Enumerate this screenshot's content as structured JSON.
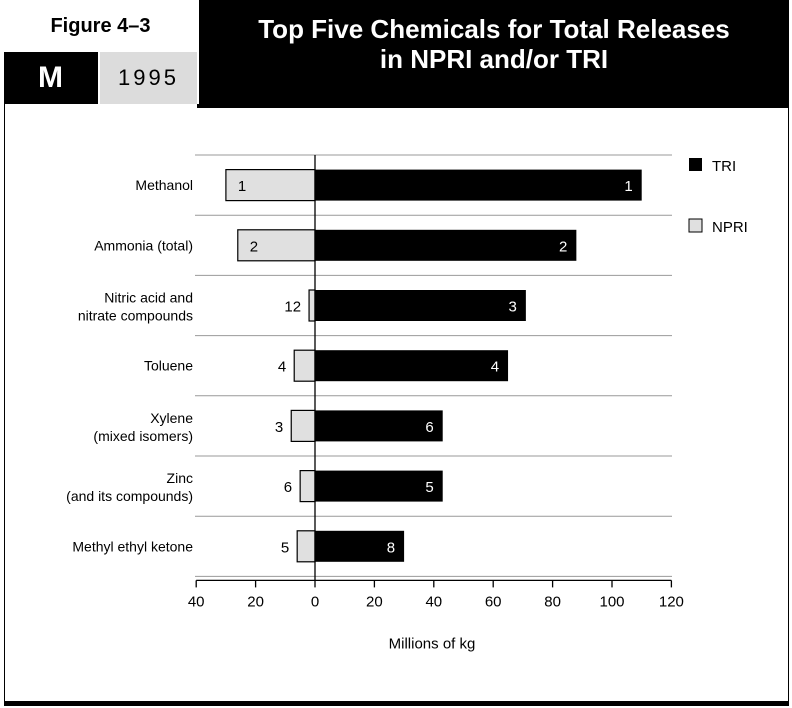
{
  "header": {
    "figure_label": "Figure 4–3",
    "code_letter": "M",
    "year": "1995",
    "title_line1": "Top Five Chemicals for Total Releases",
    "title_line2": "in NPRI and/or TRI"
  },
  "colors": {
    "tri": "#000000",
    "npri": "#e0e0e0",
    "grid": "#999999"
  },
  "chart_data": {
    "type": "bar",
    "orientation": "horizontal",
    "title": "Top Five Chemicals for Total Releases in NPRI and/or TRI",
    "xlabel": "Millions of kg",
    "xlim": [
      -40,
      120
    ],
    "x_ticks": [
      -40,
      -20,
      0,
      20,
      40,
      60,
      80,
      100,
      120
    ],
    "x_tick_labels": [
      "40",
      "20",
      "0",
      "20",
      "40",
      "60",
      "80",
      "100",
      "120"
    ],
    "categories": [
      [
        "Methanol"
      ],
      [
        "Ammonia (total)"
      ],
      [
        "Nitric acid and",
        "nitrate compounds"
      ],
      [
        "Toluene"
      ],
      [
        "Xylene",
        "(mixed isomers)"
      ],
      [
        "Zinc",
        "(and its compounds)"
      ],
      [
        "Methyl ethyl ketone"
      ]
    ],
    "series": [
      {
        "name": "TRI",
        "values": [
          110,
          88,
          71,
          65,
          43,
          43,
          30
        ],
        "ranks": [
          "1",
          "2",
          "3",
          "4",
          "6",
          "5",
          "8"
        ]
      },
      {
        "name": "NPRI",
        "values": [
          30,
          26,
          2,
          7,
          8,
          5,
          6
        ],
        "ranks": [
          "1",
          "2",
          "12",
          "4",
          "3",
          "6",
          "5"
        ]
      }
    ],
    "legend": {
      "position": "right",
      "entries": [
        "TRI",
        "NPRI"
      ]
    },
    "grid": true
  }
}
